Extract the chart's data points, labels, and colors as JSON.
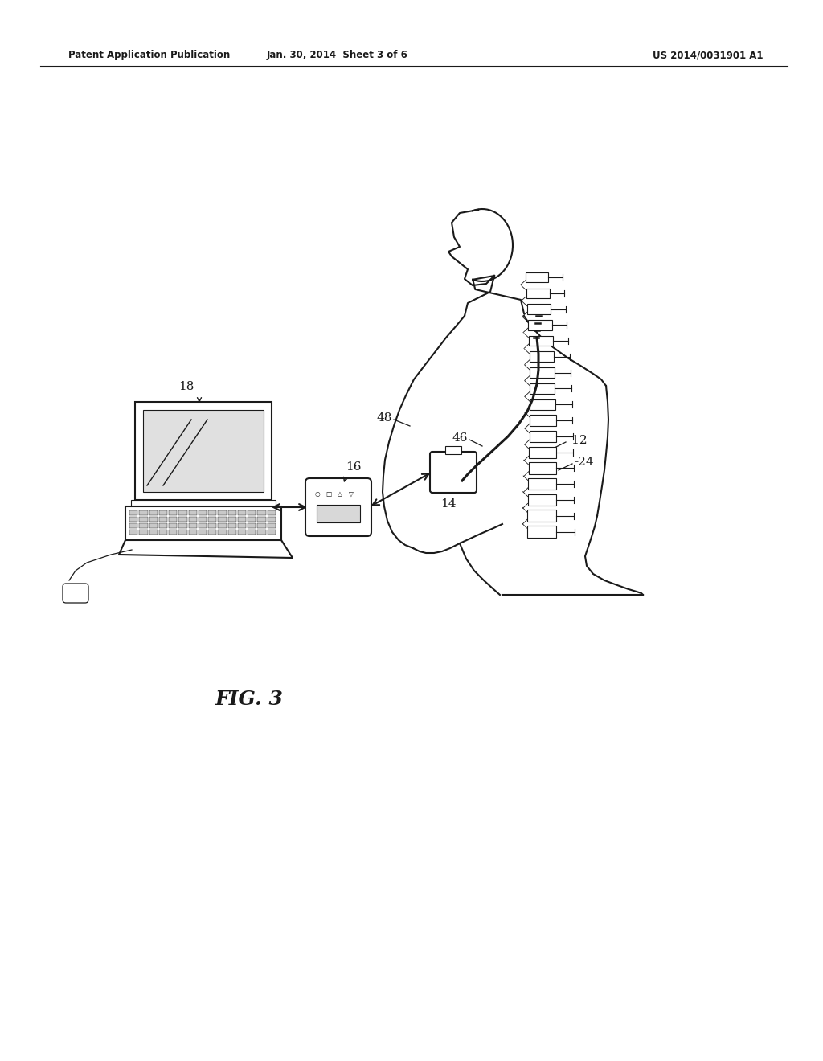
{
  "bg_color": "#ffffff",
  "line_color": "#1a1a1a",
  "header_left": "Patent Application Publication",
  "header_center": "Jan. 30, 2014  Sheet 3 of 6",
  "header_right": "US 2014/0031901 A1",
  "fig_label": "FIG. 3"
}
